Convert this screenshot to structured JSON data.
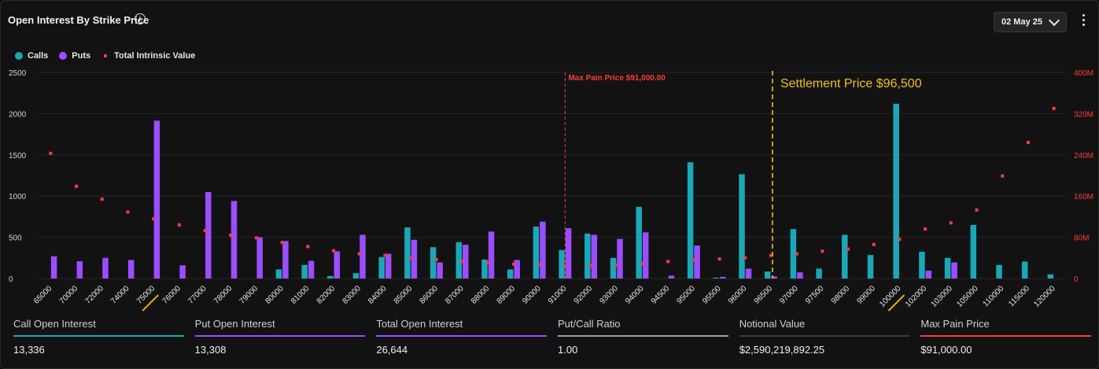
{
  "header": {
    "title": "Open Interest By Strike Price",
    "info_icon": "info-icon",
    "date": "02 May 25"
  },
  "legend": [
    {
      "label": "Calls",
      "color": "#1aa7b8"
    },
    {
      "label": "Puts",
      "color": "#9b4dff"
    },
    {
      "label": "Total Intrinsic Value",
      "color": "#ff3b3b"
    }
  ],
  "chart_data": {
    "type": "bar",
    "categories": [
      "65000",
      "70000",
      "72000",
      "74000",
      "75000",
      "76000",
      "77000",
      "78000",
      "79000",
      "80000",
      "81000",
      "82000",
      "83000",
      "84000",
      "85000",
      "86000",
      "87000",
      "88000",
      "89000",
      "90000",
      "91000",
      "92000",
      "93000",
      "94000",
      "94500",
      "95000",
      "95500",
      "96000",
      "96500",
      "97000",
      "97500",
      "98000",
      "99000",
      "100000",
      "102000",
      "103000",
      "105000",
      "110000",
      "115000",
      "120000"
    ],
    "highlighted_categories": [
      "75000",
      "100000"
    ],
    "series": [
      {
        "name": "Calls",
        "values": [
          0,
          0,
          0,
          0,
          0,
          0,
          0,
          0,
          0,
          110,
          165,
          30,
          65,
          260,
          620,
          380,
          440,
          230,
          110,
          630,
          345,
          545,
          250,
          870,
          0,
          1410,
          10,
          1265,
          85,
          600,
          120,
          530,
          285,
          2120,
          325,
          250,
          650,
          165,
          205,
          50
        ]
      },
      {
        "name": "Puts",
        "values": [
          270,
          210,
          250,
          225,
          1915,
          160,
          1050,
          940,
          500,
          455,
          215,
          330,
          530,
          300,
          470,
          195,
          410,
          570,
          225,
          690,
          610,
          530,
          480,
          560,
          35,
          400,
          20,
          120,
          25,
          75,
          0,
          0,
          0,
          0,
          95,
          195,
          0,
          0,
          0,
          0
        ]
      },
      {
        "name": "Total Intrinsic Value",
        "values": [
          243,
          179,
          154,
          129,
          116,
          104,
          93,
          84,
          79,
          70,
          62,
          54,
          48,
          45,
          40,
          37,
          33,
          30,
          28,
          27,
          25,
          25,
          26,
          29,
          33,
          36,
          38,
          40,
          45,
          48,
          53,
          57,
          66,
          76,
          96,
          108,
          133,
          199,
          264,
          330
        ]
      }
    ],
    "y_left": {
      "ticks": [
        0,
        500,
        1000,
        1500,
        2000,
        2500
      ],
      "range": [
        0,
        2500
      ]
    },
    "y_right": {
      "ticks": [
        "0",
        "80M",
        "160M",
        "240M",
        "320M",
        "400M"
      ],
      "range": [
        0,
        400
      ],
      "unit": "M"
    },
    "annotations": {
      "max_pain_label": "Max Pain Price $91,000.00",
      "max_pain_strike": "91000",
      "settlement_label": "Settlement Price $96,500",
      "settlement_strike": "96500"
    }
  },
  "stats": [
    {
      "label": "Call Open Interest",
      "value": "13,336",
      "color": "#1aa7b8"
    },
    {
      "label": "Put Open Interest",
      "value": "13,308",
      "color": "#9b4dff"
    },
    {
      "label": "Total Open Interest",
      "value": "26,644",
      "color": "#9b4dff"
    },
    {
      "label": "Put/Call Ratio",
      "value": "1.00",
      "color": "#9aa0a6"
    },
    {
      "label": "Notional Value",
      "value": "$2,590,219,892.25",
      "color": "#3c3c3c"
    },
    {
      "label": "Max Pain Price",
      "value": "$91,000.00",
      "color": "#ff3b3b"
    }
  ]
}
